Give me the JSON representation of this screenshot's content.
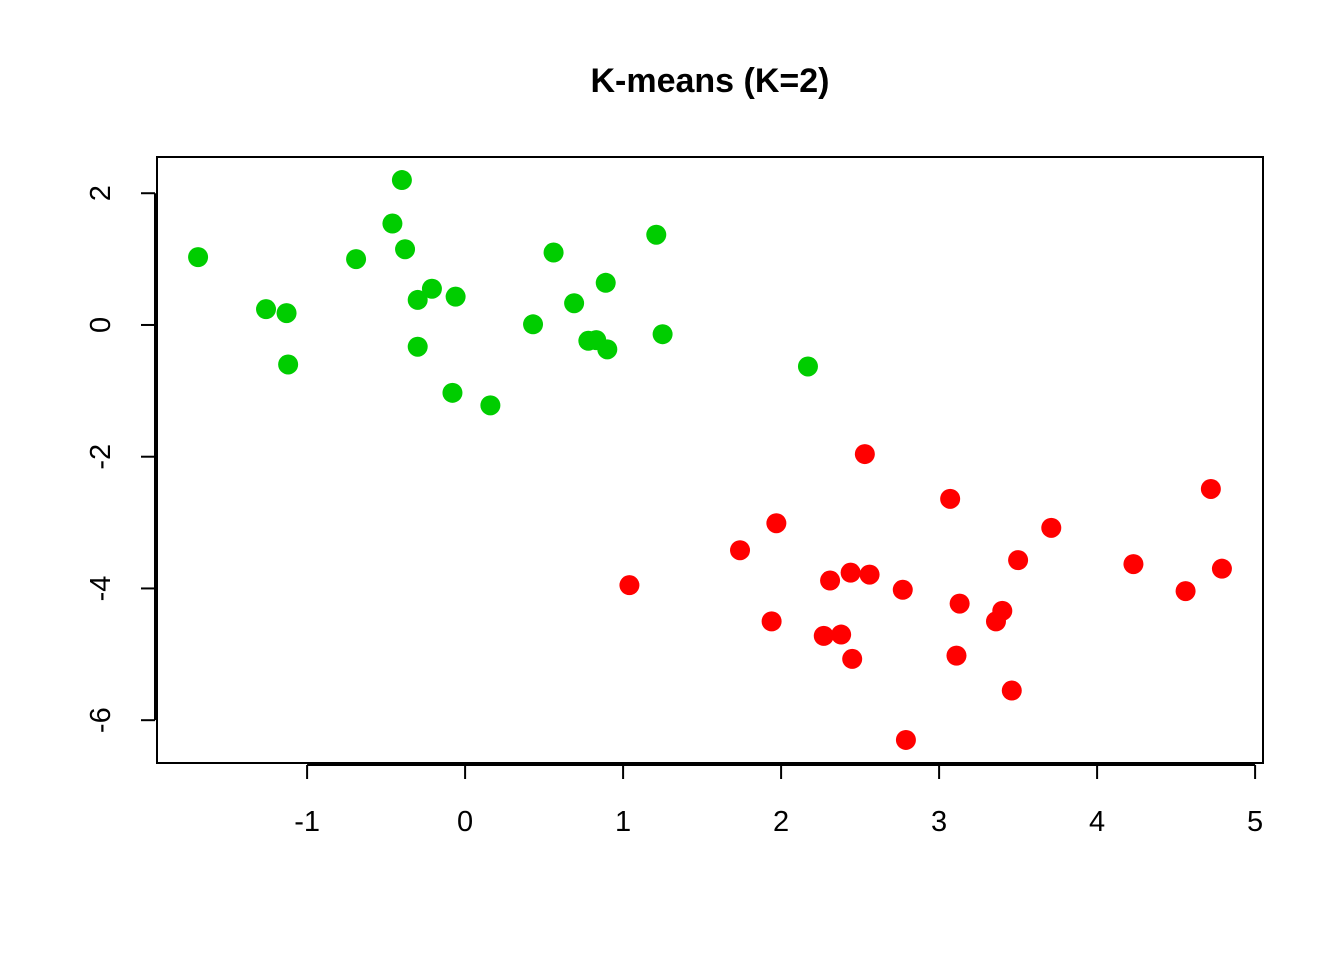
{
  "chart_data": {
    "type": "scatter",
    "title": "K-means (K=2)",
    "xlabel": "",
    "ylabel": "",
    "xlim": [
      -1.95,
      5.05
    ],
    "ylim": [
      -6.65,
      2.55
    ],
    "xticks": [
      "-1",
      "0",
      "1",
      "2",
      "3",
      "4",
      "5"
    ],
    "yticks": [
      "-6",
      "-4",
      "-2",
      "0",
      "2"
    ],
    "grid": false,
    "legend": "none",
    "series": [
      {
        "color": "#00cd00",
        "points": [
          {
            "x": -1.69,
            "y": 1.03
          },
          {
            "x": -1.26,
            "y": 0.24
          },
          {
            "x": -1.13,
            "y": 0.18
          },
          {
            "x": -1.12,
            "y": -0.6
          },
          {
            "x": -0.69,
            "y": 1.0
          },
          {
            "x": -0.46,
            "y": 1.54
          },
          {
            "x": -0.4,
            "y": 2.2
          },
          {
            "x": -0.38,
            "y": 1.15
          },
          {
            "x": -0.3,
            "y": 0.38
          },
          {
            "x": -0.3,
            "y": -0.33
          },
          {
            "x": -0.21,
            "y": 0.55
          },
          {
            "x": -0.08,
            "y": -1.03
          },
          {
            "x": -0.06,
            "y": 0.43
          },
          {
            "x": 0.16,
            "y": -1.22
          },
          {
            "x": 0.43,
            "y": 0.01
          },
          {
            "x": 0.56,
            "y": 1.1
          },
          {
            "x": 0.69,
            "y": 0.33
          },
          {
            "x": 0.78,
            "y": -0.24
          },
          {
            "x": 0.83,
            "y": -0.23
          },
          {
            "x": 0.89,
            "y": 0.64
          },
          {
            "x": 0.9,
            "y": -0.37
          },
          {
            "x": 1.21,
            "y": 1.37
          },
          {
            "x": 1.25,
            "y": -0.14
          },
          {
            "x": 2.17,
            "y": -0.63
          }
        ]
      },
      {
        "color": "#ff0000",
        "points": [
          {
            "x": 1.04,
            "y": -3.95
          },
          {
            "x": 1.74,
            "y": -3.42
          },
          {
            "x": 1.94,
            "y": -4.5
          },
          {
            "x": 1.97,
            "y": -3.01
          },
          {
            "x": 2.27,
            "y": -4.72
          },
          {
            "x": 2.31,
            "y": -3.88
          },
          {
            "x": 2.38,
            "y": -4.7
          },
          {
            "x": 2.44,
            "y": -3.76
          },
          {
            "x": 2.45,
            "y": -5.07
          },
          {
            "x": 2.53,
            "y": -1.96
          },
          {
            "x": 2.56,
            "y": -3.79
          },
          {
            "x": 2.77,
            "y": -4.02
          },
          {
            "x": 2.79,
            "y": -6.3
          },
          {
            "x": 3.07,
            "y": -2.64
          },
          {
            "x": 3.11,
            "y": -5.02
          },
          {
            "x": 3.13,
            "y": -4.23
          },
          {
            "x": 3.36,
            "y": -4.5
          },
          {
            "x": 3.4,
            "y": -4.34
          },
          {
            "x": 3.46,
            "y": -5.55
          },
          {
            "x": 3.5,
            "y": -3.57
          },
          {
            "x": 3.71,
            "y": -3.08
          },
          {
            "x": 4.23,
            "y": -3.63
          },
          {
            "x": 4.56,
            "y": -4.04
          },
          {
            "x": 4.72,
            "y": -2.49
          },
          {
            "x": 4.79,
            "y": -3.7
          }
        ]
      }
    ]
  }
}
